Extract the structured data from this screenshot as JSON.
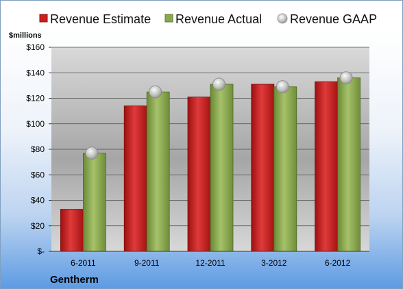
{
  "chart_data": {
    "type": "bar",
    "title": "",
    "company": "Gentherm",
    "ylabel": "$millions",
    "xlabel": "",
    "ylim": [
      0,
      160
    ],
    "yticks": [
      0,
      20,
      40,
      60,
      80,
      100,
      120,
      140,
      160
    ],
    "ytick_labels": [
      "$-",
      "$20",
      "$40",
      "$60",
      "$80",
      "$100",
      "$120",
      "$140",
      "$160"
    ],
    "categories": [
      "6-2011",
      "9-2011",
      "12-2011",
      "3-2012",
      "6-2012"
    ],
    "series": [
      {
        "name": "Revenue Estimate",
        "kind": "bar",
        "color": "#cc1f1f",
        "values": [
          33,
          114,
          121,
          131,
          133
        ]
      },
      {
        "name": "Revenue Actual",
        "kind": "bar",
        "color": "#8aa84e",
        "values": [
          77,
          125,
          131,
          129,
          136
        ]
      },
      {
        "name": "Revenue GAAP",
        "kind": "marker",
        "color": "#b5b5b5",
        "values": [
          77,
          125,
          131,
          129,
          136
        ]
      }
    ],
    "legend_position": "top",
    "grid": true
  }
}
